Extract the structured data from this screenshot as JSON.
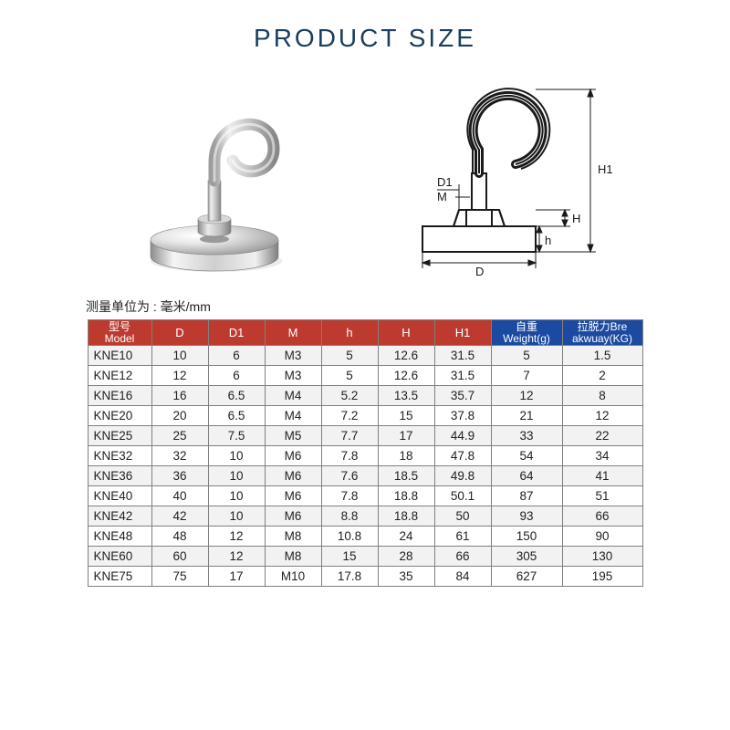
{
  "title": "PRODUCT SIZE",
  "unit_note": "测量单位为 : 毫米/mm",
  "title_color": "#1b3d5e",
  "table": {
    "header_red": "#bc3b2e",
    "header_blue": "#1b4aa0",
    "grid_color": "#808080",
    "row_alt_bg": "#f2f2f2",
    "columns": [
      {
        "key": "model",
        "top": "型号",
        "bottom": "Model",
        "group": "red"
      },
      {
        "key": "D",
        "top": "D",
        "group": "red"
      },
      {
        "key": "D1",
        "top": "D1",
        "group": "red"
      },
      {
        "key": "M",
        "top": "M",
        "group": "red"
      },
      {
        "key": "h",
        "top": "h",
        "group": "red"
      },
      {
        "key": "H",
        "top": "H",
        "group": "red"
      },
      {
        "key": "H1",
        "top": "H1",
        "group": "red"
      },
      {
        "key": "weight",
        "top": "自重",
        "bottom": "Weight(g)",
        "group": "blue"
      },
      {
        "key": "break",
        "top": "拉脱力Bre",
        "bottom": "akwuay(KG)",
        "group": "blue"
      }
    ],
    "rows": [
      [
        "KNE10",
        "10",
        "6",
        "M3",
        "5",
        "12.6",
        "31.5",
        "5",
        "1.5"
      ],
      [
        "KNE12",
        "12",
        "6",
        "M3",
        "5",
        "12.6",
        "31.5",
        "7",
        "2"
      ],
      [
        "KNE16",
        "16",
        "6.5",
        "M4",
        "5.2",
        "13.5",
        "35.7",
        "12",
        "8"
      ],
      [
        "KNE20",
        "20",
        "6.5",
        "M4",
        "7.2",
        "15",
        "37.8",
        "21",
        "12"
      ],
      [
        "KNE25",
        "25",
        "7.5",
        "M5",
        "7.7",
        "17",
        "44.9",
        "33",
        "22"
      ],
      [
        "KNE32",
        "32",
        "10",
        "M6",
        "7.8",
        "18",
        "47.8",
        "54",
        "34"
      ],
      [
        "KNE36",
        "36",
        "10",
        "M6",
        "7.6",
        "18.5",
        "49.8",
        "64",
        "41"
      ],
      [
        "KNE40",
        "40",
        "10",
        "M6",
        "7.8",
        "18.8",
        "50.1",
        "87",
        "51"
      ],
      [
        "KNE42",
        "42",
        "10",
        "M6",
        "8.8",
        "18.8",
        "50",
        "93",
        "66"
      ],
      [
        "KNE48",
        "48",
        "12",
        "M8",
        "10.8",
        "24",
        "61",
        "150",
        "90"
      ],
      [
        "KNE60",
        "60",
        "12",
        "M8",
        "15",
        "28",
        "66",
        "305",
        "130"
      ],
      [
        "KNE75",
        "75",
        "17",
        "M10",
        "17.8",
        "35",
        "84",
        "627",
        "195"
      ]
    ]
  },
  "diagram_labels": {
    "D": "D",
    "D1": "D1",
    "M": "M",
    "h": "h",
    "H": "H",
    "H1": "H1"
  }
}
